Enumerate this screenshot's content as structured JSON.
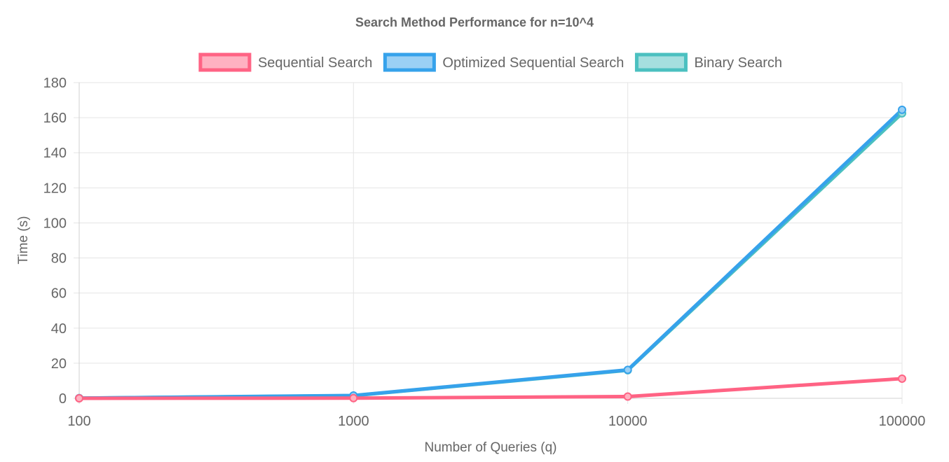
{
  "chart_data": {
    "type": "line",
    "title": "Search Method Performance for n=10^4",
    "xlabel": "Number of Queries (q)",
    "ylabel": "Time (s)",
    "categories": [
      "100",
      "1000",
      "10000",
      "100000"
    ],
    "ylim": [
      0,
      180
    ],
    "yticks": [
      "0",
      "20",
      "40",
      "60",
      "80",
      "100",
      "120",
      "140",
      "160",
      "180"
    ],
    "grid": true,
    "legend_position": "top-center",
    "series": [
      {
        "name": "Sequential Search",
        "values": [
          0.0,
          0.1,
          1.0,
          11.2
        ],
        "color": "#ff6384",
        "fill": "#ffb1c1"
      },
      {
        "name": "Optimized Sequential Search",
        "values": [
          0.1,
          1.6,
          16.2,
          164.5
        ],
        "color": "#36a2eb",
        "fill": "#9ad0f5"
      },
      {
        "name": "Binary Search",
        "values": [
          0.1,
          1.5,
          16.0,
          162.5
        ],
        "color": "#4bc0c0",
        "fill": "#a5dfdf"
      }
    ]
  }
}
